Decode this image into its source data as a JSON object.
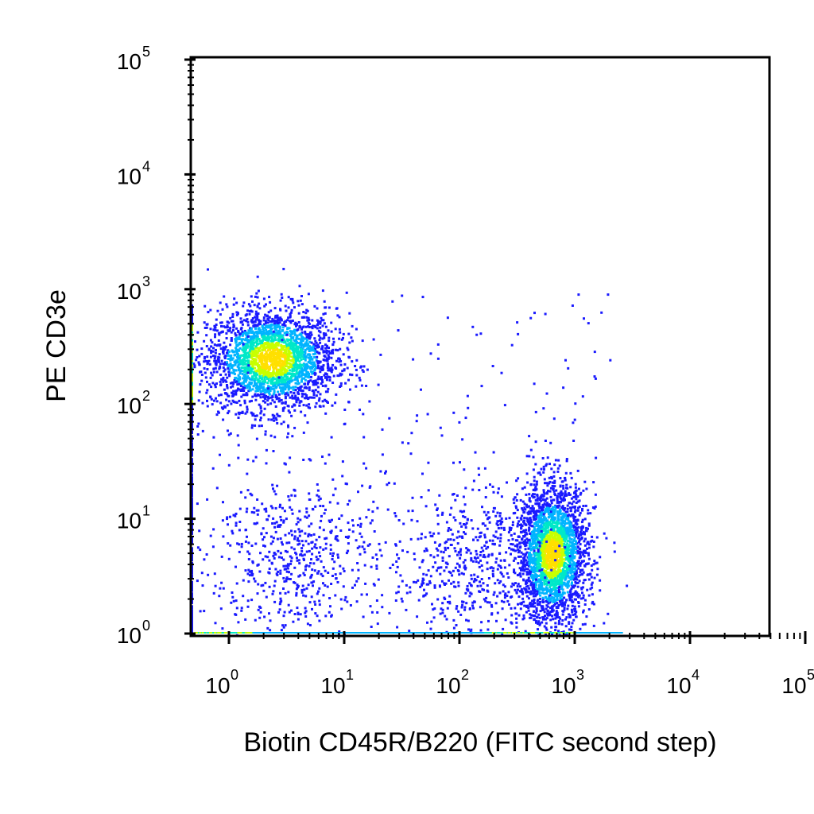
{
  "chart_data": {
    "type": "scatter",
    "title": "",
    "xlabel": "Biotin CD45R/B220 (FITC second step)",
    "ylabel": "PE CD3e",
    "x_scale": "log",
    "y_scale": "log",
    "xlim": [
      1,
      100000
    ],
    "ylim": [
      1,
      100000
    ],
    "x_ticks": [
      {
        "base": "10",
        "exp": "0",
        "value": 1
      },
      {
        "base": "10",
        "exp": "1",
        "value": 10
      },
      {
        "base": "10",
        "exp": "2",
        "value": 100
      },
      {
        "base": "10",
        "exp": "3",
        "value": 1000
      },
      {
        "base": "10",
        "exp": "4",
        "value": 10000
      },
      {
        "base": "10",
        "exp": "5",
        "value": 100000
      }
    ],
    "y_ticks": [
      {
        "base": "10",
        "exp": "0",
        "value": 1
      },
      {
        "base": "10",
        "exp": "1",
        "value": 10
      },
      {
        "base": "10",
        "exp": "2",
        "value": 100
      },
      {
        "base": "10",
        "exp": "3",
        "value": 1000
      },
      {
        "base": "10",
        "exp": "4",
        "value": 10000
      },
      {
        "base": "10",
        "exp": "5",
        "value": 100000
      }
    ],
    "grid": false,
    "density_colormap": [
      "#1a1aff",
      "#00b4ff",
      "#00e8c8",
      "#c8ff00",
      "#ffe000"
    ],
    "populations": [
      {
        "x_center": 2.3,
        "y_center": 250,
        "x_spread_log": 0.28,
        "y_spread_log": 0.22,
        "density": "high"
      },
      {
        "x_center": 630,
        "y_center": 5,
        "x_spread_log": 0.15,
        "y_spread_log": 0.3,
        "density": "high"
      },
      {
        "x_center": 3.5,
        "y_center": 5,
        "x_spread_log": 0.35,
        "y_spread_log": 0.35,
        "density": "low"
      },
      {
        "x_center": 120,
        "y_center": 4,
        "x_spread_log": 0.35,
        "y_spread_log": 0.35,
        "density": "low"
      }
    ]
  }
}
